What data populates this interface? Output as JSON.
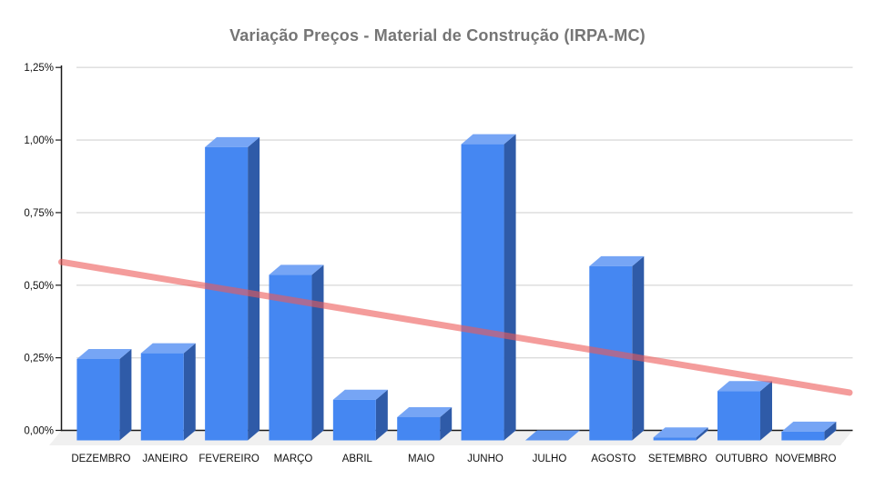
{
  "chart_data": {
    "type": "bar",
    "style": "3d-column",
    "title": "Variação Preços - Material de Construção (IRPA-MC)",
    "categories": [
      "DEZEMBRO",
      "JANEIRO",
      "FEVEREIRO",
      "MARÇO",
      "ABRIL",
      "MAIO",
      "JUNHO",
      "JULHO",
      "AGOSTO",
      "SETEMBRO",
      "OUTUBRO",
      "NOVEMBRO"
    ],
    "values": [
      0.28,
      0.3,
      1.01,
      0.57,
      0.14,
      0.08,
      1.02,
      0.0,
      0.6,
      0.01,
      0.17,
      0.03
    ],
    "unit": "%",
    "xlabel": "",
    "ylabel": "",
    "ylim": [
      0,
      1.25
    ],
    "ytick_step": 0.25,
    "ytick_labels": [
      "0,00%",
      "0,25%",
      "0,50%",
      "0,75%",
      "1,00%",
      "1,25%"
    ],
    "grid": true,
    "legend": false,
    "trendline": {
      "type": "linear",
      "start_value": 0.58,
      "end_value": 0.13,
      "color": "#ED5A58",
      "opacity": 0.6
    },
    "colors": {
      "bar_front": "#4587F2",
      "bar_top": "#76A5F5",
      "bar_side": "#2F5BA8",
      "bar_flat": "#5D94EE",
      "floor": "#F0F0F0",
      "gridline": "#DBDBDB",
      "axis": "#1a1a1a",
      "title": "#757575",
      "label": "#111111"
    }
  }
}
